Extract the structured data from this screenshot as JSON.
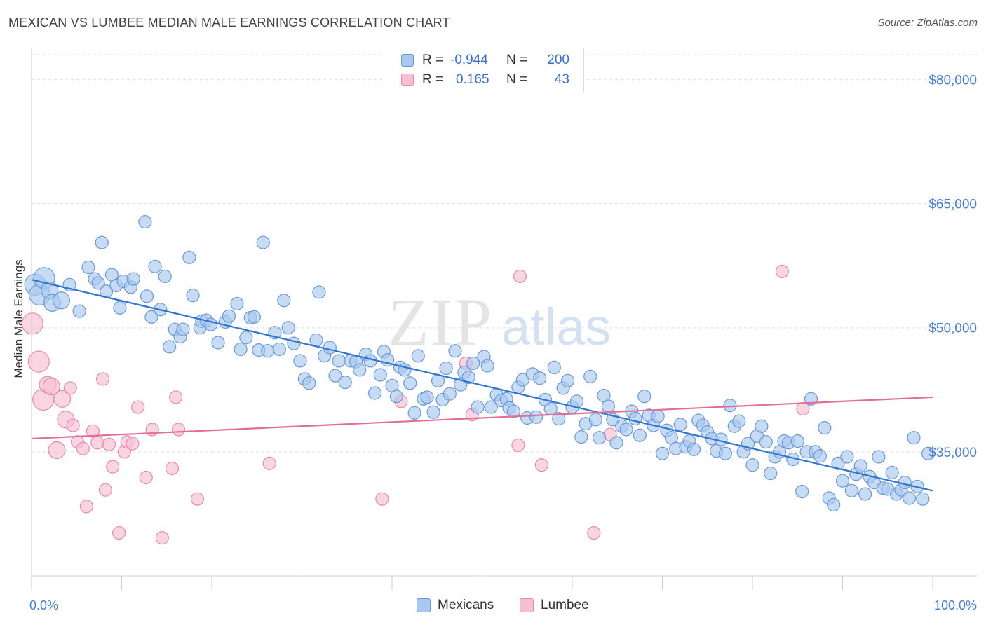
{
  "title": "MEXICAN VS LUMBEE MEDIAN MALE EARNINGS CORRELATION CHART",
  "source": "Source: ZipAtlas.com",
  "watermark": {
    "zip": "ZIP",
    "atlas": "atlas"
  },
  "colors": {
    "blue_fill": "#a9c8f0",
    "blue_stroke": "#6a9ad6",
    "blue_line": "#2f74cf",
    "pink_fill": "#f6bfd2",
    "pink_stroke": "#e88aaa",
    "pink_line": "#e26e98",
    "tick_text": "#4a7fd0",
    "grid": "#dddddd"
  },
  "legend": {
    "rows": [
      {
        "r_label": "R =",
        "r_value": "-0.944",
        "n_label": "N =",
        "n_value": "200",
        "color": "#a9c8f0",
        "stroke": "#6a9ad6"
      },
      {
        "r_label": "R =",
        "r_value": "0.165",
        "n_label": "N =",
        "n_value": "43",
        "color": "#f6bfd2",
        "stroke": "#e88aaa"
      }
    ]
  },
  "bottom_legend": [
    {
      "label": "Mexicans",
      "color": "#a9c8f0",
      "stroke": "#6a9ad6"
    },
    {
      "label": "Lumbee",
      "color": "#f6bfd2",
      "stroke": "#e88aaa"
    }
  ],
  "chart_data": {
    "type": "scatter",
    "title": "MEXICAN VS LUMBEE MEDIAN MALE EARNINGS CORRELATION CHART",
    "xlabel": "",
    "ylabel": "Median Male Earnings",
    "xlim": [
      0,
      100
    ],
    "ylim": [
      20000,
      83000
    ],
    "x_tick_labels": {
      "left": "0.0%",
      "right": "100.0%"
    },
    "y_ticks": [
      {
        "value": 35000,
        "label": "$35,000"
      },
      {
        "value": 50000,
        "label": "$50,000"
      },
      {
        "value": 65000,
        "label": "$65,000"
      },
      {
        "value": 80000,
        "label": "$80,000"
      }
    ],
    "grid": true,
    "series": [
      {
        "name": "Mexicans",
        "color": "#a9c8f0",
        "r": -0.944,
        "n": 200,
        "trend": {
          "x": [
            0,
            100
          ],
          "y": [
            55800,
            30300
          ]
        },
        "points": [
          [
            0.4,
            55200
          ],
          [
            0.9,
            54000
          ],
          [
            1.4,
            56000
          ],
          [
            2.0,
            54500
          ],
          [
            2.3,
            53000
          ],
          [
            3.3,
            53300
          ],
          [
            4.2,
            55200
          ],
          [
            5.3,
            52000
          ],
          [
            7.0,
            55900
          ],
          [
            6.3,
            57300
          ],
          [
            7.4,
            55400
          ],
          [
            8.3,
            54400
          ],
          [
            7.8,
            60300
          ],
          [
            8.9,
            56400
          ],
          [
            9.4,
            55100
          ],
          [
            9.8,
            52400
          ],
          [
            10.2,
            55600
          ],
          [
            11.0,
            54900
          ],
          [
            11.3,
            55900
          ],
          [
            12.6,
            62800
          ],
          [
            12.8,
            53800
          ],
          [
            13.3,
            51300
          ],
          [
            13.7,
            57400
          ],
          [
            14.3,
            52200
          ],
          [
            14.8,
            56200
          ],
          [
            15.3,
            47700
          ],
          [
            15.9,
            49800
          ],
          [
            16.5,
            48900
          ],
          [
            16.8,
            49800
          ],
          [
            17.5,
            58500
          ],
          [
            17.9,
            53900
          ],
          [
            18.7,
            50000
          ],
          [
            18.9,
            50800
          ],
          [
            19.4,
            50900
          ],
          [
            19.9,
            50400
          ],
          [
            20.7,
            48200
          ],
          [
            21.5,
            50700
          ],
          [
            21.9,
            51400
          ],
          [
            22.8,
            52900
          ],
          [
            23.2,
            47400
          ],
          [
            23.8,
            48800
          ],
          [
            24.3,
            51200
          ],
          [
            24.7,
            51300
          ],
          [
            25.2,
            47300
          ],
          [
            25.7,
            60300
          ],
          [
            26.2,
            47200
          ],
          [
            27.0,
            49400
          ],
          [
            27.5,
            47400
          ],
          [
            28.0,
            53300
          ],
          [
            28.5,
            50000
          ],
          [
            29.1,
            48100
          ],
          [
            29.8,
            46000
          ],
          [
            30.3,
            43800
          ],
          [
            30.8,
            43300
          ],
          [
            31.6,
            48500
          ],
          [
            31.9,
            54300
          ],
          [
            32.5,
            46600
          ],
          [
            33.1,
            47600
          ],
          [
            33.7,
            44200
          ],
          [
            34.1,
            46000
          ],
          [
            34.8,
            43400
          ],
          [
            35.4,
            46000
          ],
          [
            36.0,
            45900
          ],
          [
            36.4,
            44900
          ],
          [
            37.1,
            46800
          ],
          [
            37.6,
            46000
          ],
          [
            38.1,
            42100
          ],
          [
            38.7,
            44300
          ],
          [
            39.1,
            47100
          ],
          [
            39.5,
            46100
          ],
          [
            40.0,
            43000
          ],
          [
            40.5,
            41700
          ],
          [
            40.9,
            45200
          ],
          [
            41.4,
            44900
          ],
          [
            42.0,
            43300
          ],
          [
            42.5,
            39700
          ],
          [
            42.9,
            46600
          ],
          [
            43.5,
            41400
          ],
          [
            43.9,
            41600
          ],
          [
            44.6,
            39800
          ],
          [
            45.1,
            43600
          ],
          [
            45.6,
            41300
          ],
          [
            46.0,
            45100
          ],
          [
            46.4,
            42000
          ],
          [
            47.0,
            47200
          ],
          [
            47.6,
            43100
          ],
          [
            48.0,
            44600
          ],
          [
            48.5,
            44000
          ],
          [
            49.0,
            45700
          ],
          [
            49.5,
            40400
          ],
          [
            50.2,
            46500
          ],
          [
            50.6,
            45400
          ],
          [
            51.0,
            40400
          ],
          [
            51.6,
            41900
          ],
          [
            52.1,
            41200
          ],
          [
            52.7,
            41400
          ],
          [
            53.0,
            40300
          ],
          [
            53.5,
            39900
          ],
          [
            54.0,
            42800
          ],
          [
            54.5,
            43700
          ],
          [
            55.0,
            39100
          ],
          [
            55.6,
            44400
          ],
          [
            56.0,
            39200
          ],
          [
            56.4,
            43900
          ],
          [
            57.0,
            41300
          ],
          [
            57.6,
            40200
          ],
          [
            58.0,
            45200
          ],
          [
            58.5,
            39000
          ],
          [
            59.0,
            42700
          ],
          [
            59.5,
            43600
          ],
          [
            60.0,
            40400
          ],
          [
            60.5,
            41100
          ],
          [
            61.0,
            36800
          ],
          [
            61.5,
            38400
          ],
          [
            62.0,
            44100
          ],
          [
            62.6,
            38900
          ],
          [
            63.0,
            36700
          ],
          [
            63.5,
            41800
          ],
          [
            64.0,
            40500
          ],
          [
            64.5,
            38900
          ],
          [
            64.9,
            36100
          ],
          [
            65.5,
            38100
          ],
          [
            66.0,
            37700
          ],
          [
            66.6,
            39900
          ],
          [
            67.0,
            39000
          ],
          [
            67.5,
            37000
          ],
          [
            68.0,
            41700
          ],
          [
            68.5,
            39400
          ],
          [
            69.0,
            38200
          ],
          [
            69.5,
            39300
          ],
          [
            70.0,
            34800
          ],
          [
            70.5,
            37600
          ],
          [
            71.0,
            36700
          ],
          [
            71.5,
            35400
          ],
          [
            72.0,
            38300
          ],
          [
            72.6,
            35600
          ],
          [
            73.0,
            36300
          ],
          [
            73.5,
            35300
          ],
          [
            74.0,
            38800
          ],
          [
            74.5,
            38200
          ],
          [
            75.0,
            37400
          ],
          [
            75.5,
            36600
          ],
          [
            76.0,
            35100
          ],
          [
            76.5,
            36500
          ],
          [
            77.0,
            34800
          ],
          [
            77.5,
            40600
          ],
          [
            78.0,
            38100
          ],
          [
            78.5,
            38700
          ],
          [
            79.0,
            35000
          ],
          [
            79.5,
            36000
          ],
          [
            80.0,
            33400
          ],
          [
            80.5,
            36900
          ],
          [
            81.0,
            38100
          ],
          [
            81.5,
            36200
          ],
          [
            82.0,
            32400
          ],
          [
            82.5,
            34400
          ],
          [
            83.0,
            35000
          ],
          [
            83.5,
            36300
          ],
          [
            84.0,
            36100
          ],
          [
            84.5,
            34100
          ],
          [
            85.0,
            36300
          ],
          [
            85.5,
            30200
          ],
          [
            86.0,
            35000
          ],
          [
            86.5,
            41400
          ],
          [
            87.0,
            35000
          ],
          [
            87.5,
            34500
          ],
          [
            88.0,
            37900
          ],
          [
            88.5,
            29400
          ],
          [
            89.0,
            28600
          ],
          [
            89.5,
            33600
          ],
          [
            90.0,
            31500
          ],
          [
            90.5,
            34400
          ],
          [
            91.0,
            30300
          ],
          [
            91.5,
            32300
          ],
          [
            92.0,
            33300
          ],
          [
            92.5,
            29900
          ],
          [
            93.0,
            32000
          ],
          [
            93.5,
            31300
          ],
          [
            94.0,
            34400
          ],
          [
            94.5,
            30600
          ],
          [
            95.0,
            30500
          ],
          [
            95.5,
            32500
          ],
          [
            96.0,
            29900
          ],
          [
            96.5,
            30400
          ],
          [
            96.9,
            31300
          ],
          [
            97.4,
            29400
          ],
          [
            97.9,
            36700
          ],
          [
            98.3,
            30800
          ],
          [
            98.9,
            29300
          ],
          [
            99.5,
            34800
          ]
        ]
      },
      {
        "name": "Lumbee",
        "color": "#f6bfd2",
        "r": 0.165,
        "n": 43,
        "trend": {
          "x": [
            0,
            100
          ],
          "y": [
            36600,
            41600
          ]
        },
        "points": [
          [
            0.1,
            50500
          ],
          [
            0.8,
            45900
          ],
          [
            1.3,
            41300
          ],
          [
            1.8,
            43100
          ],
          [
            2.2,
            42900
          ],
          [
            2.8,
            35200
          ],
          [
            3.4,
            41400
          ],
          [
            3.8,
            38900
          ],
          [
            4.3,
            42700
          ],
          [
            4.6,
            38200
          ],
          [
            5.1,
            36200
          ],
          [
            5.7,
            35400
          ],
          [
            6.1,
            28400
          ],
          [
            6.8,
            37500
          ],
          [
            7.3,
            36100
          ],
          [
            7.9,
            43800
          ],
          [
            8.2,
            30400
          ],
          [
            8.6,
            35900
          ],
          [
            9.0,
            33200
          ],
          [
            9.7,
            25200
          ],
          [
            10.3,
            35000
          ],
          [
            10.6,
            36200
          ],
          [
            11.2,
            36000
          ],
          [
            11.8,
            40400
          ],
          [
            12.7,
            31900
          ],
          [
            13.4,
            37700
          ],
          [
            14.5,
            24600
          ],
          [
            15.6,
            33000
          ],
          [
            16.0,
            41600
          ],
          [
            16.3,
            37700
          ],
          [
            18.4,
            29300
          ],
          [
            26.4,
            33600
          ],
          [
            38.9,
            29300
          ],
          [
            41.0,
            41100
          ],
          [
            48.2,
            45700
          ],
          [
            54.0,
            35800
          ],
          [
            54.2,
            56200
          ],
          [
            56.6,
            33400
          ],
          [
            62.4,
            25200
          ],
          [
            64.2,
            37100
          ],
          [
            83.3,
            56800
          ],
          [
            85.6,
            40200
          ],
          [
            48.9,
            39500
          ]
        ]
      }
    ]
  }
}
